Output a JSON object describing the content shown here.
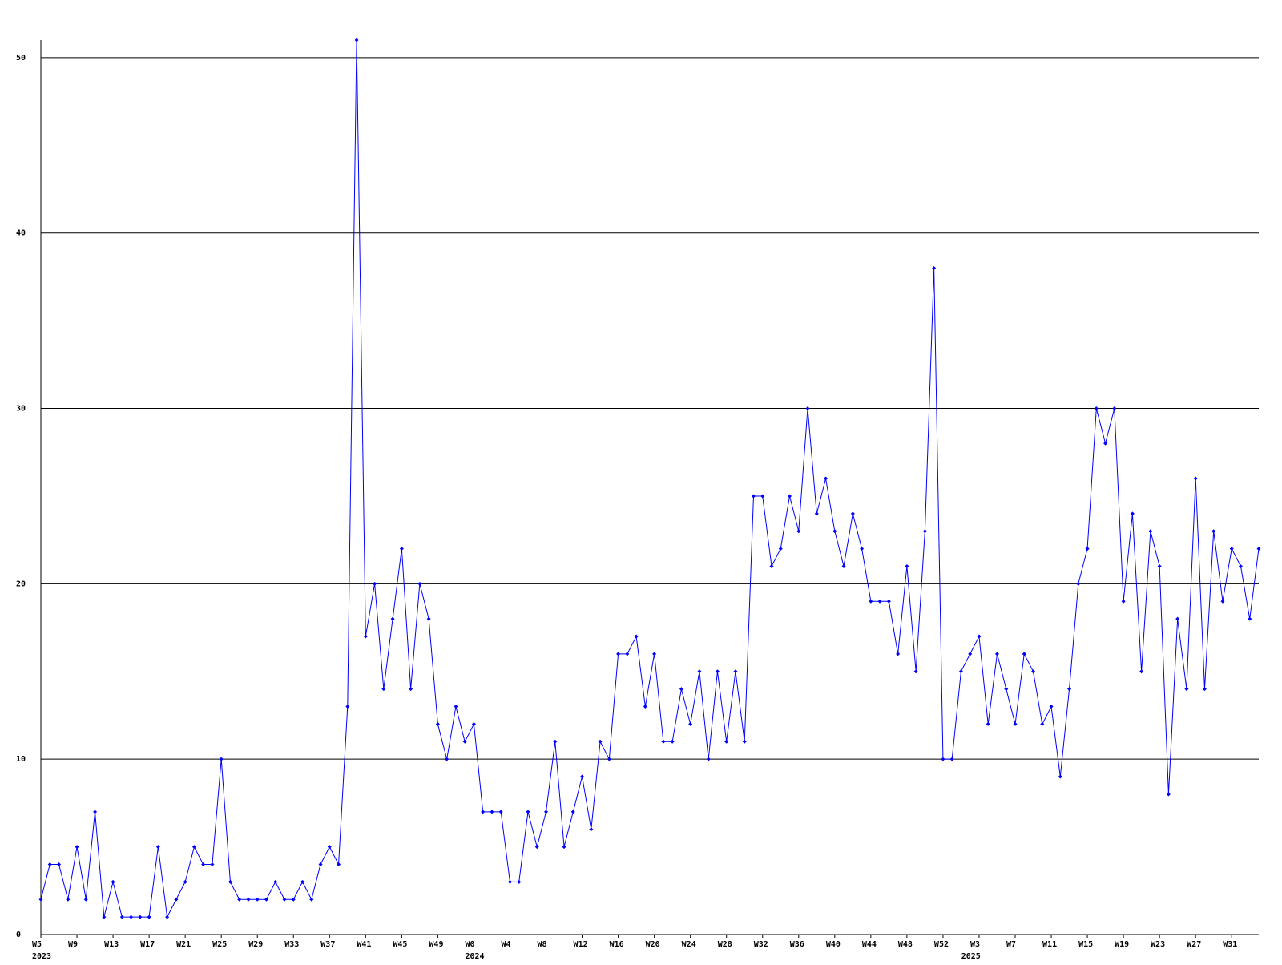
{
  "chart_data": {
    "type": "line",
    "categories": [
      "W5",
      null,
      null,
      null,
      "W9",
      null,
      null,
      null,
      "W13",
      null,
      null,
      null,
      "W17",
      null,
      null,
      null,
      "W21",
      null,
      null,
      null,
      "W25",
      null,
      null,
      null,
      "W29",
      null,
      null,
      null,
      "W33",
      null,
      null,
      null,
      "W37",
      null,
      null,
      null,
      "W41",
      null,
      null,
      null,
      "W45",
      null,
      null,
      null,
      "W49",
      null,
      null,
      null,
      "W0",
      null,
      null,
      null,
      "W4",
      null,
      null,
      null,
      "W8",
      null,
      null,
      null,
      "W12",
      null,
      null,
      null,
      "W16",
      null,
      null,
      null,
      "W20",
      null,
      null,
      null,
      "W24",
      null,
      null,
      null,
      "W28",
      null,
      null,
      null,
      "W32",
      null,
      null,
      null,
      "W36",
      null,
      null,
      null,
      "W40",
      null,
      null,
      null,
      "W44",
      null,
      null,
      null,
      "W48",
      null,
      null,
      null,
      "W52",
      null,
      null,
      null,
      "W3",
      null,
      null,
      null,
      "W7",
      null,
      null,
      null,
      "W11",
      null,
      null,
      null,
      "W15",
      null,
      null,
      null,
      "W19",
      null,
      null,
      null,
      "W23",
      null,
      null,
      null,
      "W27",
      null,
      null,
      null,
      "W31",
      null,
      null,
      null
    ],
    "category_groups": [
      "2023",
      null,
      null,
      null,
      null,
      null,
      null,
      null,
      null,
      null,
      null,
      null,
      null,
      null,
      null,
      null,
      null,
      null,
      null,
      null,
      null,
      null,
      null,
      null,
      null,
      null,
      null,
      null,
      null,
      null,
      null,
      null,
      null,
      null,
      null,
      null,
      null,
      null,
      null,
      null,
      null,
      null,
      null,
      null,
      null,
      null,
      null,
      null,
      "2024",
      null,
      null,
      null,
      null,
      null,
      null,
      null,
      null,
      null,
      null,
      null,
      null,
      null,
      null,
      null,
      null,
      null,
      null,
      null,
      null,
      null,
      null,
      null,
      null,
      null,
      null,
      null,
      null,
      null,
      null,
      null,
      null,
      null,
      null,
      null,
      null,
      null,
      null,
      null,
      null,
      null,
      null,
      null,
      null,
      null,
      null,
      null,
      null,
      null,
      null,
      null,
      null,
      null,
      null,
      "2025",
      null,
      null,
      null,
      null,
      null,
      null,
      null,
      null,
      null,
      null,
      null,
      null,
      null,
      null,
      null,
      null,
      null,
      null,
      null,
      null,
      null,
      null,
      null,
      null,
      null,
      null,
      null,
      null,
      null,
      null,
      null,
      null,
      null,
      null
    ],
    "series": [
      {
        "color": "#0000ff",
        "values": [
          2,
          4,
          4,
          2,
          5,
          2,
          7,
          1,
          3,
          1,
          1,
          1,
          1,
          5,
          1,
          2,
          3,
          5,
          4,
          4,
          10,
          3,
          2,
          2,
          2,
          2,
          3,
          2,
          2,
          3,
          2,
          4,
          5,
          4,
          13,
          51,
          17,
          20,
          14,
          18,
          22,
          14,
          20,
          18,
          12,
          10,
          13,
          11,
          12,
          7,
          7,
          7,
          3,
          3,
          7,
          5,
          7,
          11,
          5,
          7,
          9,
          6,
          11,
          10,
          16,
          16,
          17,
          13,
          16,
          11,
          11,
          14,
          12,
          15,
          10,
          15,
          11,
          15,
          11,
          25,
          25,
          21,
          22,
          25,
          23,
          30,
          24,
          26,
          23,
          21,
          24,
          22,
          19,
          19,
          19,
          16,
          21,
          15,
          23,
          38,
          10,
          10,
          15,
          16,
          17,
          12,
          16,
          14,
          12,
          16,
          15,
          12,
          13,
          9,
          14,
          20,
          22,
          30,
          28,
          30,
          19,
          24,
          15,
          23,
          21,
          8,
          18,
          14,
          26,
          14,
          23,
          19,
          22,
          21,
          18,
          22
        ]
      }
    ],
    "ylim": [
      0,
      51
    ],
    "yticks": [
      0,
      10,
      20,
      30,
      40,
      50
    ],
    "grid": true
  }
}
